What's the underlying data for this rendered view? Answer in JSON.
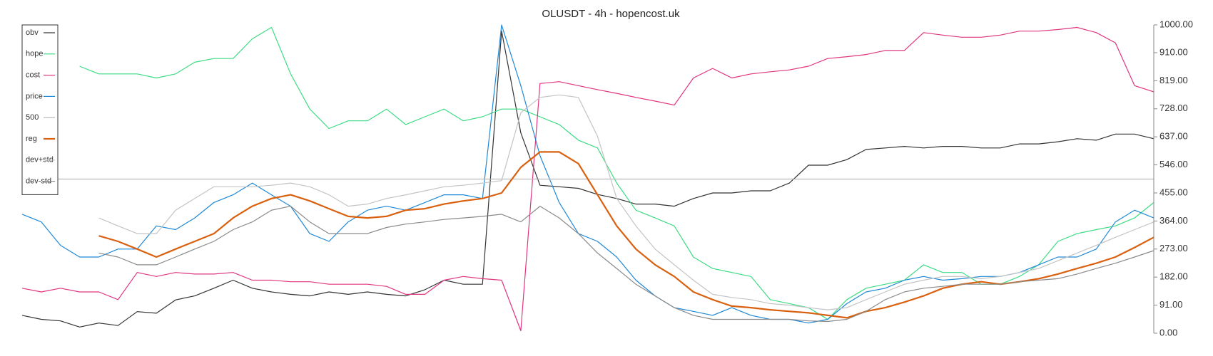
{
  "chart_data": {
    "type": "line",
    "title": "OLUSDT - 4h - hopencost.uk",
    "categories": [
      null,
      null,
      null,
      null,
      null,
      null,
      null,
      null,
      null,
      null,
      null,
      null,
      null,
      null,
      null,
      null,
      null,
      null,
      null,
      null,
      null,
      null,
      null,
      null,
      null,
      null,
      null,
      null,
      null,
      null,
      null,
      null,
      null,
      null,
      null,
      null,
      null,
      null,
      null,
      null,
      null,
      null,
      null,
      null,
      null,
      null,
      null,
      null,
      null,
      null,
      null,
      null,
      null,
      null,
      null,
      null,
      null,
      null,
      null,
      null
    ],
    "ylim": [
      0,
      1000
    ],
    "yticks": [
      {
        "value": 0,
        "label": "0.00"
      },
      {
        "value": 91,
        "label": "91.00"
      },
      {
        "value": 182,
        "label": "182.00"
      },
      {
        "value": 273,
        "label": "273.00"
      },
      {
        "value": 364,
        "label": "364.00"
      },
      {
        "value": 455,
        "label": "455.00"
      },
      {
        "value": 546,
        "label": "546.00"
      },
      {
        "value": 637,
        "label": "637.00"
      },
      {
        "value": 728,
        "label": "728.00"
      },
      {
        "value": 819,
        "label": "819.00"
      },
      {
        "value": 910,
        "label": "910.00"
      },
      {
        "value": 1000,
        "label": "1000.00"
      }
    ],
    "y_axis_side": "right",
    "grid": false,
    "legend": "top-left",
    "series": [
      {
        "name": "obv",
        "color": "#333333",
        "values": [
          58,
          45,
          40,
          20,
          33,
          25,
          70,
          65,
          108,
          121,
          146,
          172,
          146,
          134,
          126,
          121,
          134,
          126,
          134,
          126,
          121,
          141,
          172,
          159,
          159,
          980,
          650,
          480,
          475,
          470,
          450,
          437,
          419,
          419,
          412,
          437,
          455,
          455,
          462,
          462,
          487,
          545,
          545,
          563,
          596,
          601,
          606,
          601,
          606,
          606,
          601,
          601,
          614,
          614,
          621,
          631,
          626,
          646,
          646,
          631
        ]
      },
      {
        "name": "hope",
        "color": "#3ddc84",
        "values": [
          null,
          null,
          null,
          866,
          841,
          841,
          841,
          828,
          841,
          879,
          891,
          891,
          955,
          992,
          841,
          727,
          664,
          689,
          689,
          727,
          677,
          702,
          727,
          689,
          702,
          727,
          727,
          702,
          677,
          626,
          601,
          487,
          399,
          374,
          348,
          247,
          210,
          197,
          184,
          109,
          96,
          83,
          45,
          109,
          146,
          159,
          172,
          222,
          197,
          197,
          159,
          159,
          184,
          222,
          298,
          323,
          336,
          348,
          374,
          424
        ]
      },
      {
        "name": "cost",
        "color": "#e0357f",
        "values": [
          146,
          134,
          146,
          134,
          134,
          109,
          197,
          184,
          197,
          192,
          192,
          197,
          172,
          172,
          167,
          167,
          159,
          159,
          159,
          152,
          126,
          126,
          172,
          184,
          177,
          172,
          8,
          810,
          816,
          803,
          790,
          778,
          765,
          753,
          740,
          828,
          859,
          828,
          841,
          848,
          854,
          866,
          891,
          897,
          904,
          917,
          917,
          975,
          967,
          960,
          960,
          967,
          980,
          980,
          985,
          992,
          975,
          942,
          803,
          783
        ]
      },
      {
        "name": "price",
        "color": "#1f88d6",
        "values": [
          386,
          361,
          285,
          247,
          247,
          273,
          273,
          348,
          336,
          374,
          424,
          449,
          487,
          449,
          412,
          323,
          298,
          361,
          399,
          412,
          399,
          424,
          449,
          449,
          437,
          1000,
          803,
          576,
          424,
          323,
          298,
          247,
          172,
          121,
          83,
          71,
          58,
          83,
          58,
          45,
          45,
          33,
          45,
          96,
          134,
          146,
          172,
          184,
          172,
          177,
          184,
          184,
          197,
          222,
          247,
          247,
          273,
          361,
          399,
          374
        ]
      },
      {
        "name": "500",
        "color": "#b8b8b8",
        "values": [
          500,
          500,
          500,
          500,
          500,
          500,
          500,
          500,
          500,
          500,
          500,
          500,
          500,
          500,
          500,
          500,
          500,
          500,
          500,
          500,
          500,
          500,
          500,
          500,
          500,
          500,
          500,
          500,
          500,
          500,
          500,
          500,
          500,
          500,
          500,
          500,
          500,
          500,
          500,
          500,
          500,
          500,
          500,
          500,
          500,
          500,
          500,
          500,
          500,
          500,
          500,
          500,
          500,
          500,
          500,
          500,
          500,
          500,
          500,
          500
        ]
      },
      {
        "name": "reg",
        "color": "#d9600f",
        "values": [
          null,
          null,
          null,
          null,
          316,
          298,
          273,
          247,
          273,
          298,
          323,
          374,
          412,
          437,
          449,
          429,
          404,
          379,
          374,
          379,
          399,
          404,
          419,
          429,
          437,
          455,
          538,
          588,
          588,
          550,
          449,
          348,
          273,
          222,
          184,
          134,
          109,
          88,
          83,
          76,
          71,
          66,
          58,
          50,
          71,
          83,
          101,
          121,
          146,
          159,
          167,
          159,
          167,
          177,
          192,
          210,
          227,
          247,
          278,
          311
        ]
      },
      {
        "name": "dev+std",
        "color": "#c4c4c4",
        "values": [
          null,
          null,
          null,
          null,
          374,
          348,
          323,
          323,
          399,
          437,
          475,
          475,
          475,
          480,
          487,
          475,
          449,
          412,
          419,
          437,
          449,
          462,
          475,
          480,
          487,
          495,
          715,
          765,
          773,
          765,
          639,
          437,
          348,
          273,
          222,
          172,
          126,
          116,
          109,
          96,
          91,
          83,
          76,
          83,
          109,
          134,
          159,
          172,
          184,
          184,
          177,
          184,
          197,
          210,
          235,
          260,
          285,
          311,
          336,
          361
        ]
      },
      {
        "name": "dev-std",
        "color": "#8a8a8a",
        "values": [
          null,
          null,
          null,
          null,
          260,
          247,
          222,
          222,
          247,
          273,
          298,
          336,
          361,
          399,
          412,
          361,
          323,
          323,
          323,
          343,
          354,
          361,
          369,
          374,
          379,
          386,
          361,
          412,
          374,
          323,
          260,
          210,
          159,
          121,
          83,
          58,
          45,
          45,
          45,
          45,
          45,
          40,
          38,
          45,
          71,
          109,
          134,
          146,
          152,
          159,
          159,
          159,
          167,
          172,
          177,
          192,
          210,
          227,
          247,
          268
        ]
      }
    ]
  }
}
